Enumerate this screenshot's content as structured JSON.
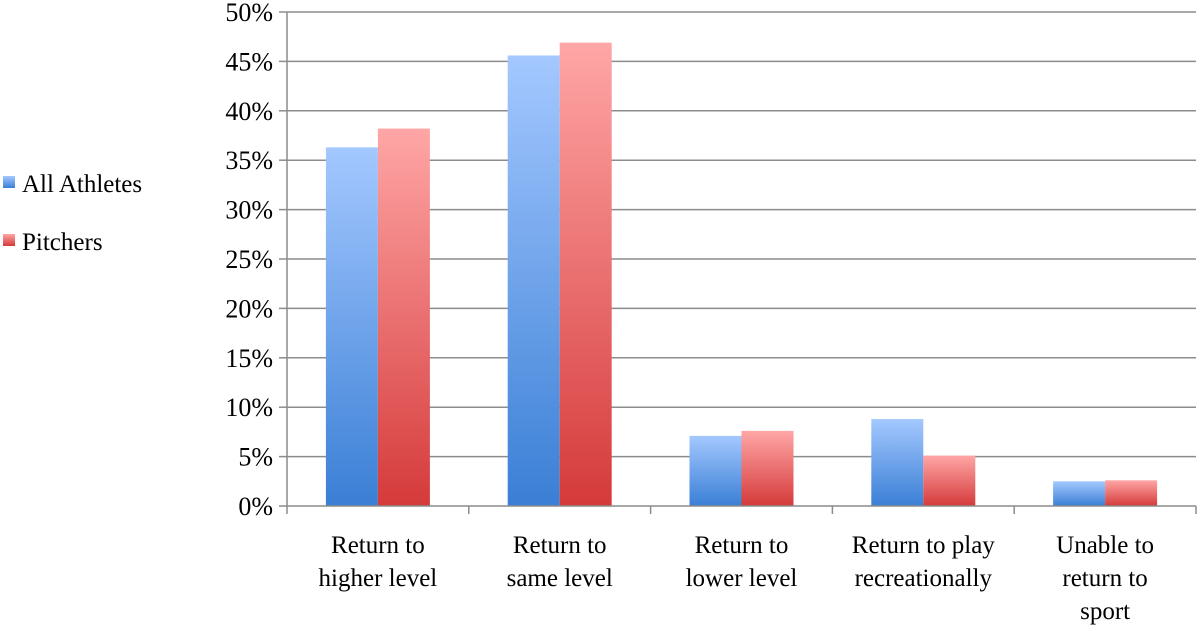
{
  "chart_data": {
    "type": "bar",
    "title": "",
    "xlabel": "",
    "ylabel": "",
    "categories": [
      [
        "Return to",
        "higher level"
      ],
      [
        "Return to",
        "same level"
      ],
      [
        "Return to",
        "lower level"
      ],
      [
        "Return to play",
        "recreationally"
      ],
      [
        "Unable to",
        "return to",
        "sport"
      ]
    ],
    "series": [
      {
        "name": "All Athletes",
        "values": [
          36.3,
          45.6,
          7.1,
          8.8,
          2.5
        ]
      },
      {
        "name": "Pitchers",
        "values": [
          38.2,
          46.9,
          7.6,
          5.1,
          2.6
        ]
      }
    ],
    "ylim": [
      0,
      50
    ],
    "yticks": [
      "0%",
      "5%",
      "10%",
      "15%",
      "20%",
      "25%",
      "30%",
      "35%",
      "40%",
      "45%",
      "50%"
    ],
    "grid": true,
    "legend_position": "left",
    "colors": {
      "All Athletes": [
        "#a4c8ff",
        "#3a7fd5"
      ],
      "Pitchers": [
        "#ffa6a6",
        "#d53a3a"
      ]
    }
  }
}
